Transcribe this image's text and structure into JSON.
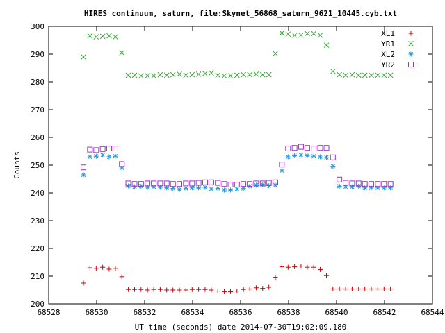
{
  "chart_data": {
    "type": "scatter",
    "title": "HIRES continuum, saturn, file:Skynet_56868_saturn_9621_10445.cyb.txt",
    "xlabel": "UT time (seconds) date 2014-07-30T19:02:09.180",
    "ylabel": "Counts",
    "xlim": [
      68528,
      68544
    ],
    "ylim": [
      200,
      300
    ],
    "x_ticks": [
      68528,
      68530,
      68532,
      68534,
      68536,
      68538,
      68540,
      68542,
      68544
    ],
    "y_ticks": [
      200,
      210,
      220,
      230,
      240,
      250,
      260,
      270,
      280,
      290,
      300
    ],
    "legend_position": "top-right",
    "x": [
      68529.45,
      68529.72,
      68529.98,
      68530.25,
      68530.52,
      68530.78,
      68531.05,
      68531.32,
      68531.58,
      68531.85,
      68532.12,
      68532.38,
      68532.65,
      68532.92,
      68533.18,
      68533.45,
      68533.72,
      68533.98,
      68534.25,
      68534.52,
      68534.78,
      68535.05,
      68535.32,
      68535.58,
      68535.85,
      68536.12,
      68536.38,
      68536.65,
      68536.92,
      68537.18,
      68537.45,
      68537.72,
      68537.98,
      68538.25,
      68538.52,
      68538.78,
      68539.05,
      68539.32,
      68539.58,
      68539.85,
      68540.12,
      68540.38,
      68540.65,
      68540.92,
      68541.18,
      68541.45,
      68541.72,
      68541.98,
      68542.25
    ],
    "series": [
      {
        "name": "XL1",
        "marker": "plus",
        "color": "#cc0000",
        "values": [
          207.5,
          213,
          212.8,
          213.2,
          212.5,
          212.8,
          209.8,
          205.2,
          205.2,
          205.2,
          205,
          205.2,
          205.2,
          205,
          205,
          205,
          205,
          205.2,
          205.2,
          205.2,
          205,
          204.6,
          204.4,
          204.4,
          204.6,
          205.2,
          205.4,
          205.8,
          205.6,
          206,
          209.6,
          213.4,
          213.2,
          213.4,
          213.6,
          213.2,
          213.2,
          212.4,
          210.2,
          205.4,
          205.4,
          205.4,
          205.4,
          205.4,
          205.4,
          205.4,
          205.4,
          205.4,
          205.4
        ]
      },
      {
        "name": "YR1",
        "marker": "cross",
        "color": "#33aa33",
        "values": [
          289,
          296.6,
          296.2,
          296.4,
          296.6,
          296.2,
          290.5,
          282.4,
          282.4,
          282.2,
          282.2,
          282.2,
          282.6,
          282.4,
          282.6,
          282.8,
          282.4,
          282.6,
          282.8,
          283,
          283.2,
          282.4,
          282.2,
          282.2,
          282.4,
          282.6,
          282.6,
          282.8,
          282.6,
          282.6,
          290.2,
          297.6,
          297.2,
          296.8,
          296.8,
          297.4,
          297.4,
          296.8,
          293.2,
          283.8,
          282.6,
          282.4,
          282.6,
          282.4,
          282.4,
          282.4,
          282.4,
          282.4,
          282.4
        ]
      },
      {
        "name": "XL2",
        "marker": "star",
        "color": "#2299dd",
        "values": [
          246.5,
          253,
          253.2,
          253.6,
          253,
          253.2,
          249,
          242.5,
          242.2,
          242.4,
          242,
          242.2,
          242,
          241.8,
          241.6,
          241.2,
          241.6,
          241.8,
          241.8,
          242,
          241.4,
          241.6,
          241,
          241,
          241.4,
          241.6,
          242.4,
          242.8,
          243,
          242.6,
          242.8,
          248,
          253,
          253.4,
          253.6,
          253.4,
          253.2,
          253,
          252.8,
          249.6,
          242.4,
          242.2,
          242.2,
          242.4,
          241.8,
          241.8,
          241.8,
          241.8,
          241.8
        ]
      },
      {
        "name": "YR2",
        "marker": "square",
        "color": "#9933cc",
        "values": [
          249.2,
          255.6,
          255.4,
          255.8,
          256,
          256,
          250.4,
          243.4,
          243.2,
          243.2,
          243.4,
          243.4,
          243.4,
          243.4,
          243.2,
          243.2,
          243.4,
          243.4,
          243.6,
          243.8,
          243.8,
          243.6,
          243.2,
          243,
          243,
          243.2,
          243.2,
          243.4,
          243.4,
          243.6,
          243.8,
          250.2,
          256,
          256.2,
          256.6,
          256.2,
          256,
          256.2,
          256.2,
          252.8,
          244.8,
          243.6,
          243.4,
          243.4,
          243.2,
          243.2,
          243.2,
          243.2,
          243.2
        ]
      }
    ]
  }
}
